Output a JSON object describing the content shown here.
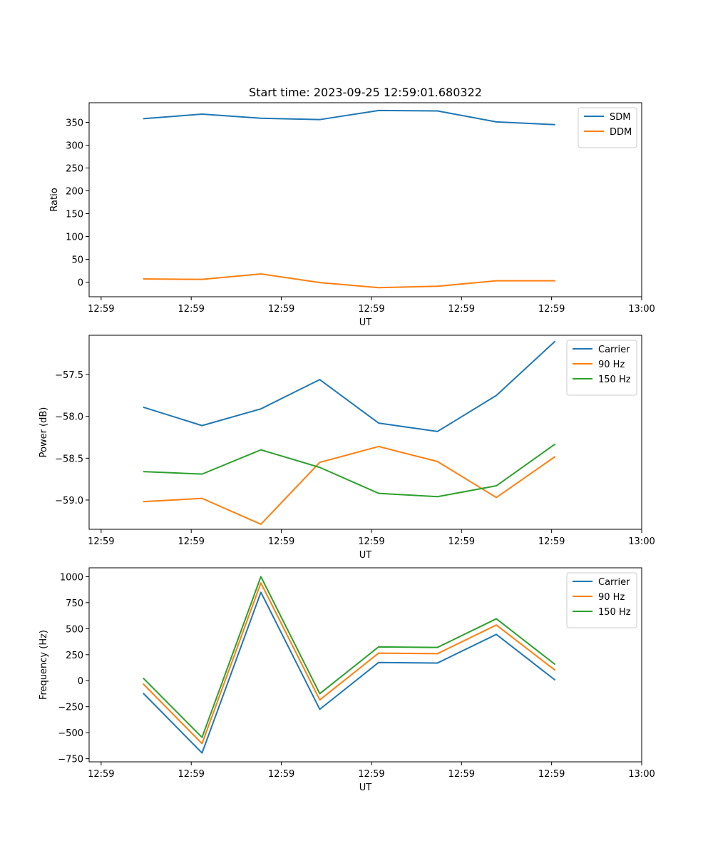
{
  "chart_data": [
    {
      "type": "line",
      "title": "Start time: 2023-09-25 12:59:01.680322",
      "xlabel": "UT",
      "ylabel": "Ratio",
      "xlim": [
        -0.2,
        9.0
      ],
      "ylim": [
        -32,
        393
      ],
      "x_tick_positions": [
        0,
        1.5,
        3,
        4.5,
        6,
        7.5,
        9
      ],
      "x_tick_labels": [
        "12:59",
        "12:59",
        "12:59",
        "12:59",
        "12:59",
        "12:59",
        "13:00"
      ],
      "y_ticks": [
        0,
        50,
        100,
        150,
        200,
        250,
        300,
        350
      ],
      "y_tick_labels": [
        "0",
        "50",
        "100",
        "150",
        "200",
        "250",
        "300",
        "350"
      ],
      "legend_position": "top-right",
      "x": [
        0.7,
        1.68,
        2.66,
        3.64,
        4.62,
        5.6,
        6.58,
        7.56
      ],
      "series": [
        {
          "name": "SDM",
          "color": "#1f77b4",
          "values": [
            358,
            368,
            359,
            356,
            376,
            375,
            351,
            345
          ]
        },
        {
          "name": "DDM",
          "color": "#ff7f0e",
          "values": [
            7,
            6,
            18,
            -1,
            -12,
            -9,
            3,
            3
          ]
        }
      ]
    },
    {
      "type": "line",
      "title": "",
      "xlabel": "UT",
      "ylabel": "Power (dB)",
      "xlim": [
        -0.2,
        9.0
      ],
      "ylim": [
        -59.35,
        -57.03
      ],
      "x_tick_positions": [
        0,
        1.5,
        3,
        4.5,
        6,
        7.5,
        9
      ],
      "x_tick_labels": [
        "12:59",
        "12:59",
        "12:59",
        "12:59",
        "12:59",
        "12:59",
        "13:00"
      ],
      "y_ticks": [
        -59.0,
        -58.5,
        -58.0,
        -57.5
      ],
      "y_tick_labels": [
        "−59.0",
        "−58.5",
        "−58.0",
        "−57.5"
      ],
      "legend_position": "top-right",
      "x": [
        0.7,
        1.68,
        2.66,
        3.64,
        4.62,
        5.6,
        6.58,
        7.56
      ],
      "series": [
        {
          "name": "Carrier",
          "color": "#1f77b4",
          "values": [
            -57.89,
            -58.11,
            -57.91,
            -57.56,
            -58.08,
            -58.18,
            -57.75,
            -57.1
          ]
        },
        {
          "name": "90 Hz",
          "color": "#ff7f0e",
          "values": [
            -59.02,
            -58.98,
            -59.29,
            -58.55,
            -58.36,
            -58.54,
            -58.97,
            -58.48
          ]
        },
        {
          "name": "150 Hz",
          "color": "#2ca02c",
          "values": [
            -58.66,
            -58.69,
            -58.4,
            -58.61,
            -58.92,
            -58.96,
            -58.83,
            -58.33
          ]
        }
      ]
    },
    {
      "type": "line",
      "title": "",
      "xlabel": "UT",
      "ylabel": "Frequency (Hz)",
      "xlim": [
        -0.2,
        9.0
      ],
      "ylim": [
        -780,
        1085
      ],
      "x_tick_positions": [
        0,
        1.5,
        3,
        4.5,
        6,
        7.5,
        9
      ],
      "x_tick_labels": [
        "12:59",
        "12:59",
        "12:59",
        "12:59",
        "12:59",
        "12:59",
        "13:00"
      ],
      "y_ticks": [
        -750,
        -500,
        -250,
        0,
        250,
        500,
        750,
        1000
      ],
      "y_tick_labels": [
        "−750",
        "−500",
        "−250",
        "0",
        "250",
        "500",
        "750",
        "1000"
      ],
      "legend_position": "top-right",
      "x": [
        0.7,
        1.68,
        2.66,
        3.64,
        4.62,
        5.6,
        6.58,
        7.56
      ],
      "series": [
        {
          "name": "Carrier",
          "color": "#1f77b4",
          "values": [
            -120,
            -695,
            850,
            -275,
            175,
            170,
            445,
            5
          ]
        },
        {
          "name": "90 Hz",
          "color": "#ff7f0e",
          "values": [
            -30,
            -605,
            940,
            -185,
            265,
            260,
            535,
            100
          ]
        },
        {
          "name": "150 Hz",
          "color": "#2ca02c",
          "values": [
            25,
            -545,
            1000,
            -125,
            325,
            320,
            595,
            155
          ]
        }
      ]
    }
  ]
}
